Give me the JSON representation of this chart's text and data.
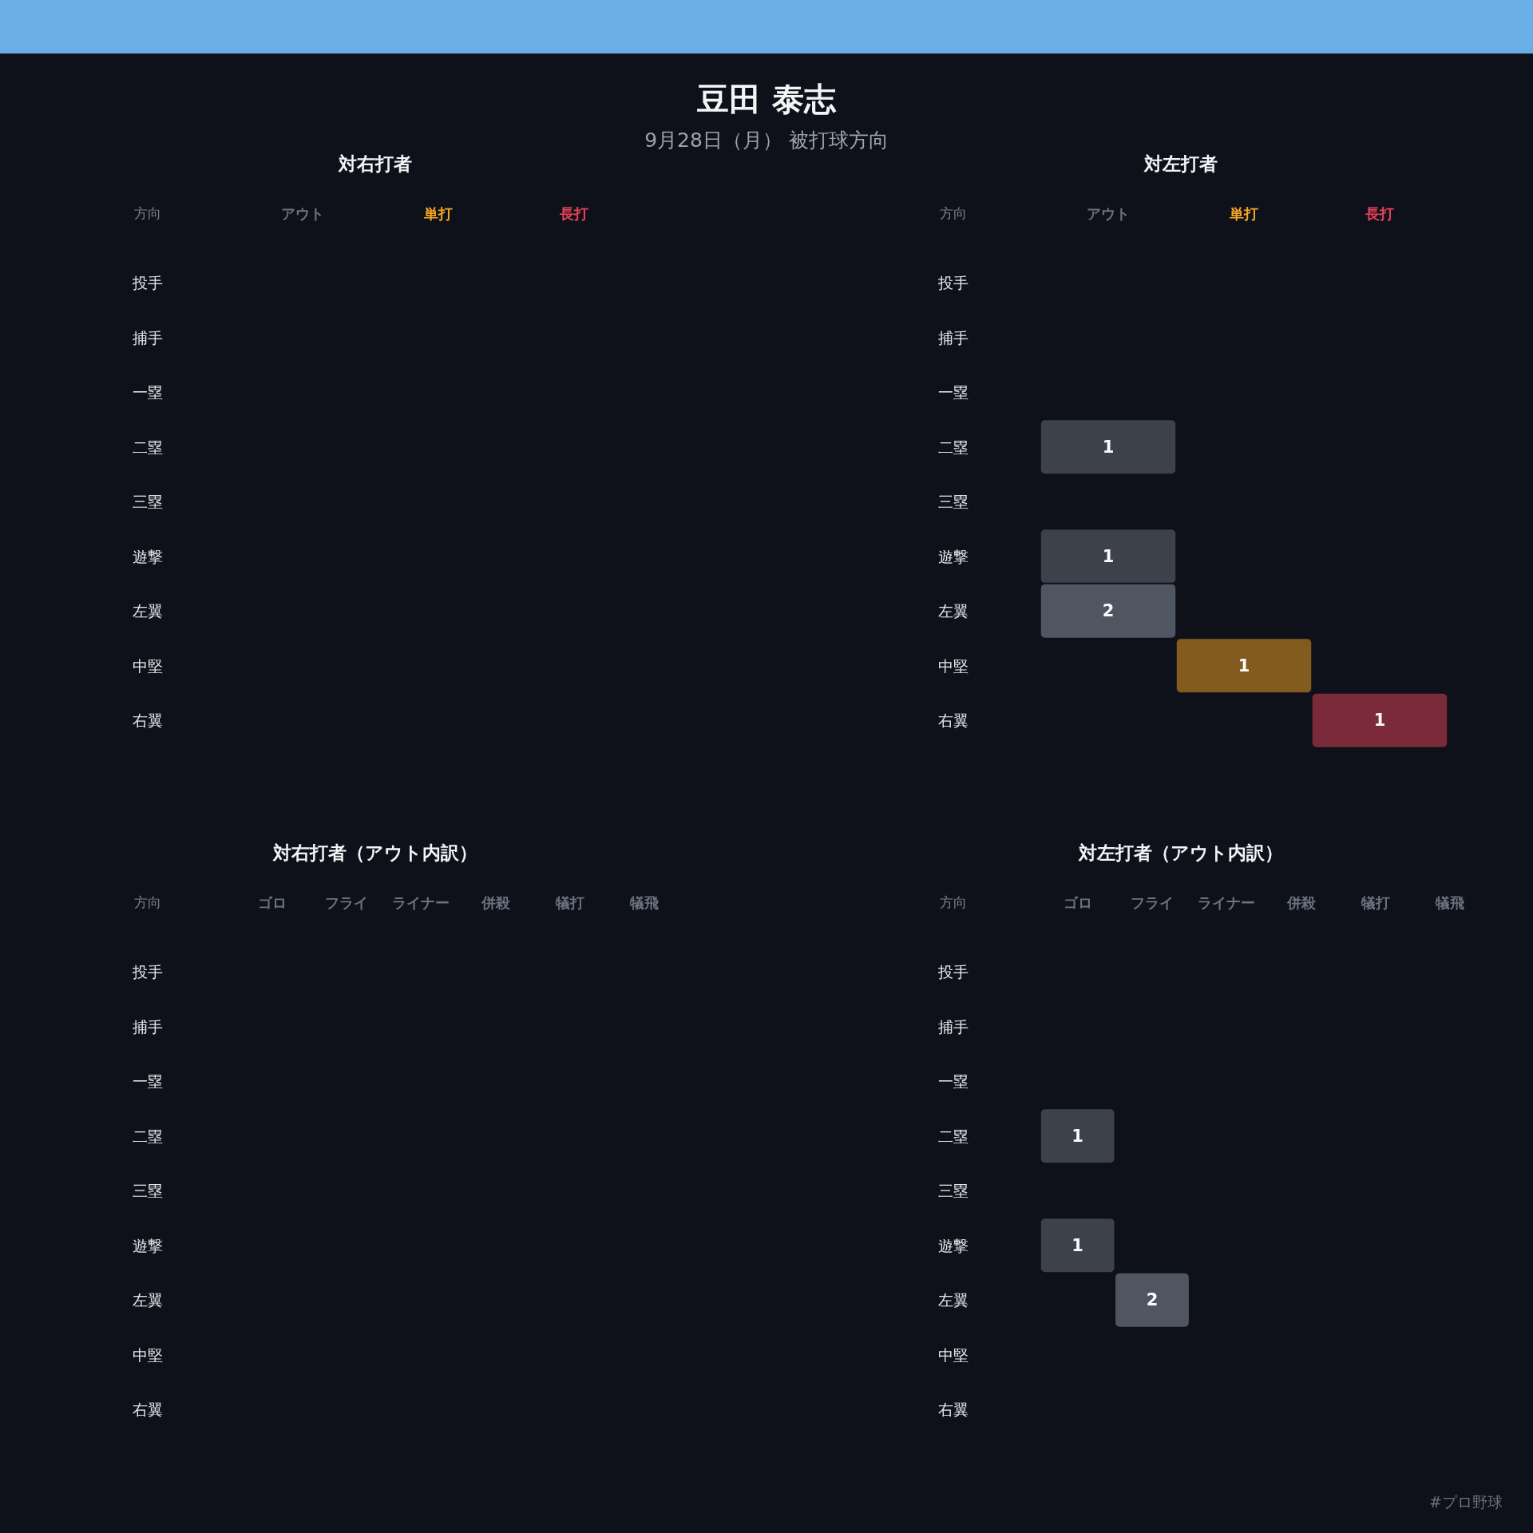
{
  "chart_data": [
    {
      "type": "other",
      "title": "豆田 泰志",
      "subtitle": "9月28日（月） 被打球方向",
      "annotations": [
        "#プロ野球"
      ]
    },
    {
      "type": "heatmap",
      "title": "対右打者",
      "ylabel": "方向",
      "categories": [
        "アウト",
        "単打",
        "長打"
      ],
      "y_categories": [
        "投手",
        "捕手",
        "一塁",
        "二塁",
        "三塁",
        "遊撃",
        "左翼",
        "中堅",
        "右翼"
      ],
      "cells": [
        [
          null,
          null,
          null
        ],
        [
          null,
          null,
          null
        ],
        [
          null,
          null,
          null
        ],
        [
          null,
          null,
          null
        ],
        [
          null,
          null,
          null
        ],
        [
          null,
          null,
          null
        ],
        [
          null,
          null,
          null
        ],
        [
          null,
          null,
          null
        ],
        [
          null,
          null,
          null
        ]
      ],
      "colors": [
        "#6b7280",
        "#f5a623",
        "#e8435a"
      ]
    },
    {
      "type": "heatmap",
      "title": "対左打者",
      "ylabel": "方向",
      "categories": [
        "アウト",
        "単打",
        "長打"
      ],
      "y_categories": [
        "投手",
        "捕手",
        "一塁",
        "二塁",
        "三塁",
        "遊撃",
        "左翼",
        "中堅",
        "右翼"
      ],
      "cells": [
        [
          null,
          null,
          null
        ],
        [
          null,
          null,
          null
        ],
        [
          null,
          null,
          null
        ],
        [
          1,
          null,
          null
        ],
        [
          null,
          null,
          null
        ],
        [
          1,
          null,
          null
        ],
        [
          2,
          null,
          null
        ],
        [
          null,
          1,
          null
        ],
        [
          null,
          null,
          1
        ]
      ],
      "colors": [
        "#6b7280",
        "#f5a623",
        "#e8435a"
      ],
      "data_labels": true
    },
    {
      "type": "heatmap",
      "title": "対右打者（アウト内訳）",
      "ylabel": "方向",
      "categories": [
        "ゴロ",
        "フライ",
        "ライナー",
        "併殺",
        "犠打",
        "犠飛"
      ],
      "y_categories": [
        "投手",
        "捕手",
        "一塁",
        "二塁",
        "三塁",
        "遊撃",
        "左翼",
        "中堅",
        "右翼"
      ],
      "cells": [
        [
          null,
          null,
          null,
          null,
          null,
          null
        ],
        [
          null,
          null,
          null,
          null,
          null,
          null
        ],
        [
          null,
          null,
          null,
          null,
          null,
          null
        ],
        [
          null,
          null,
          null,
          null,
          null,
          null
        ],
        [
          null,
          null,
          null,
          null,
          null,
          null
        ],
        [
          null,
          null,
          null,
          null,
          null,
          null
        ],
        [
          null,
          null,
          null,
          null,
          null,
          null
        ],
        [
          null,
          null,
          null,
          null,
          null,
          null
        ],
        [
          null,
          null,
          null,
          null,
          null,
          null
        ]
      ],
      "colors": [
        "#6b7280",
        "#6b7280",
        "#6b7280",
        "#6b7280",
        "#6b7280",
        "#6b7280"
      ]
    },
    {
      "type": "heatmap",
      "title": "対左打者（アウト内訳）",
      "ylabel": "方向",
      "categories": [
        "ゴロ",
        "フライ",
        "ライナー",
        "併殺",
        "犠打",
        "犠飛"
      ],
      "y_categories": [
        "投手",
        "捕手",
        "一塁",
        "二塁",
        "三塁",
        "遊撃",
        "左翼",
        "中堅",
        "右翼"
      ],
      "cells": [
        [
          null,
          null,
          null,
          null,
          null,
          null
        ],
        [
          null,
          null,
          null,
          null,
          null,
          null
        ],
        [
          null,
          null,
          null,
          null,
          null,
          null
        ],
        [
          1,
          null,
          null,
          null,
          null,
          null
        ],
        [
          null,
          null,
          null,
          null,
          null,
          null
        ],
        [
          1,
          null,
          null,
          null,
          null,
          null
        ],
        [
          null,
          2,
          null,
          null,
          null,
          null
        ],
        [
          null,
          null,
          null,
          null,
          null,
          null
        ],
        [
          null,
          null,
          null,
          null,
          null,
          null
        ]
      ],
      "colors": [
        "#6b7280",
        "#6b7280",
        "#6b7280",
        "#6b7280",
        "#6b7280",
        "#6b7280"
      ],
      "data_labels": true
    }
  ]
}
